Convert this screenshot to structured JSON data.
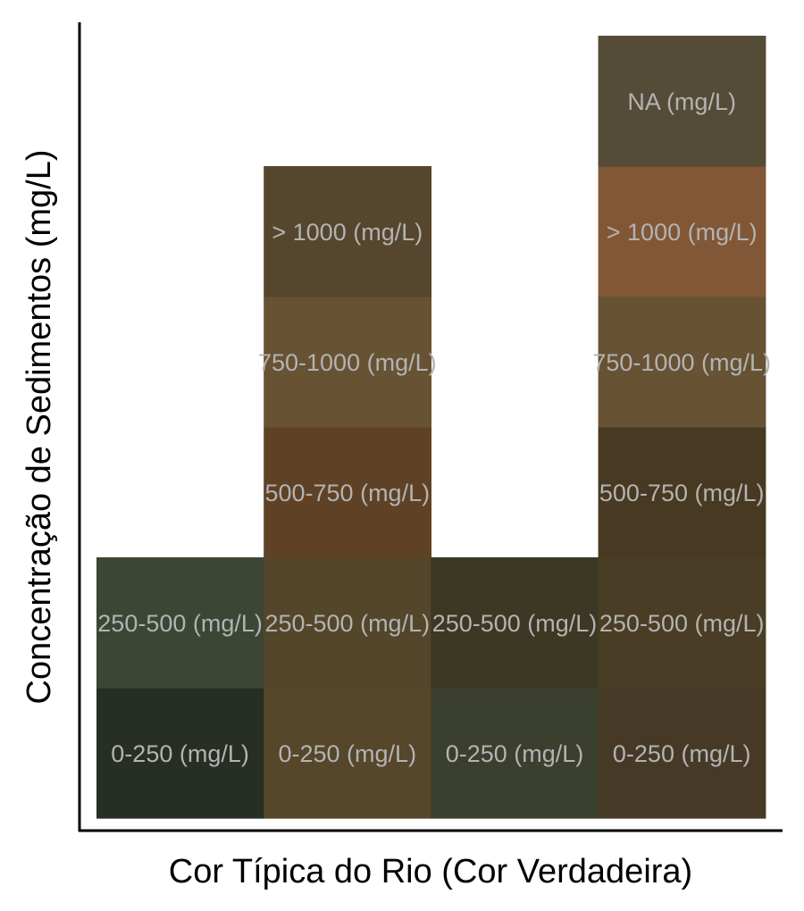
{
  "chart_data": {
    "type": "heatmap",
    "title": "",
    "xlabel": "Cor Típica do Rio (Cor Verdadeira)",
    "ylabel": "Concentração de Sedimentos (mg/L)",
    "label_color": "#b3b3b3",
    "axis_color": "#000000",
    "columns": [
      {
        "tiles": [
          {
            "label": "0-250 (mg/L)",
            "color": "#272e24"
          },
          {
            "label": "250-500 (mg/L)",
            "color": "#3c4634"
          }
        ]
      },
      {
        "tiles": [
          {
            "label": "0-250 (mg/L)",
            "color": "#56462a"
          },
          {
            "label": "250-500 (mg/L)",
            "color": "#54462b"
          },
          {
            "label": "500-750 (mg/L)",
            "color": "#5f4226"
          },
          {
            "label": "750-1000 (mg/L)",
            "color": "#675234"
          },
          {
            "label": "> 1000 (mg/L)",
            "color": "#57462e"
          }
        ]
      },
      {
        "tiles": [
          {
            "label": "0-250 (mg/L)",
            "color": "#3b3f2d"
          },
          {
            "label": "250-500 (mg/L)",
            "color": "#3c3823"
          }
        ]
      },
      {
        "tiles": [
          {
            "label": "0-250 (mg/L)",
            "color": "#463a27"
          },
          {
            "label": "250-500 (mg/L)",
            "color": "#4a3d25"
          },
          {
            "label": "500-750 (mg/L)",
            "color": "#483923"
          },
          {
            "label": "750-1000 (mg/L)",
            "color": "#675234"
          },
          {
            "label": "> 1000 (mg/L)",
            "color": "#815736"
          },
          {
            "label": "NA (mg/L)",
            "color": "#554c37"
          }
        ]
      }
    ]
  }
}
